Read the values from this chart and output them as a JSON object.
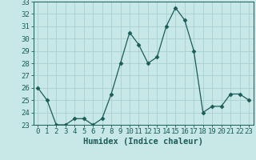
{
  "x": [
    0,
    1,
    2,
    3,
    4,
    5,
    6,
    7,
    8,
    9,
    10,
    11,
    12,
    13,
    14,
    15,
    16,
    17,
    18,
    19,
    20,
    21,
    22,
    23
  ],
  "y": [
    26,
    25,
    23,
    23,
    23.5,
    23.5,
    23,
    23.5,
    25.5,
    28,
    30.5,
    29.5,
    28,
    28.5,
    31,
    32.5,
    31.5,
    29,
    24,
    24.5,
    24.5,
    25.5,
    25.5,
    25
  ],
  "line_color": "#1a5c57",
  "marker": "D",
  "marker_size": 2.5,
  "background_color": "#c8e8e8",
  "grid_color": "#aad0d0",
  "xlabel": "Humidex (Indice chaleur)",
  "ylim": [
    23,
    33
  ],
  "xlim": [
    -0.5,
    23.5
  ],
  "yticks": [
    23,
    24,
    25,
    26,
    27,
    28,
    29,
    30,
    31,
    32,
    33
  ],
  "xticks": [
    0,
    1,
    2,
    3,
    4,
    5,
    6,
    7,
    8,
    9,
    10,
    11,
    12,
    13,
    14,
    15,
    16,
    17,
    18,
    19,
    20,
    21,
    22,
    23
  ],
  "tick_color": "#1a5c57",
  "label_color": "#1a5c57",
  "font_size": 6.5
}
